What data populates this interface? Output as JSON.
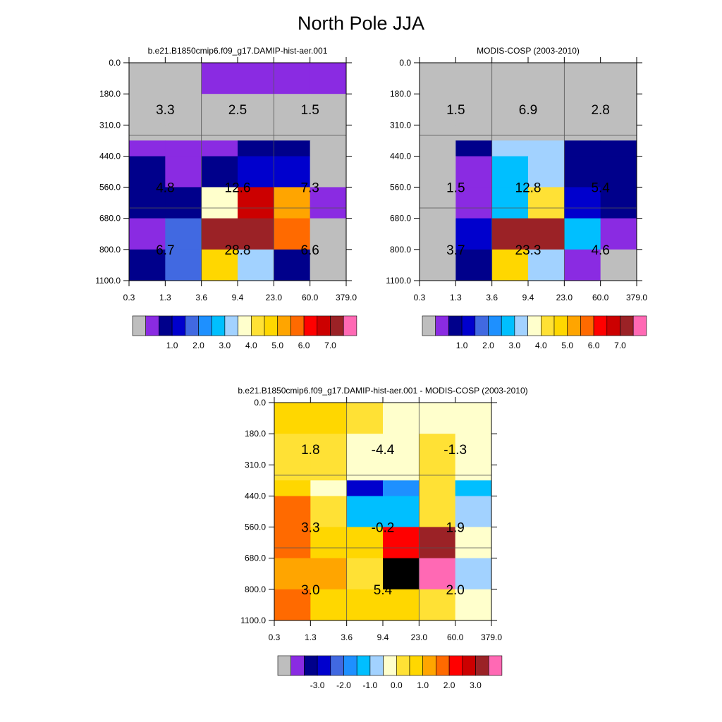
{
  "title": "North Pole JJA",
  "chart_data": [
    {
      "type": "heatmap",
      "title": "b.e21.B1850cmip6.f09_g17.DAMIP-hist-aer.001",
      "x_tick_labels": [
        "0.3",
        "1.3",
        "3.6",
        "9.4",
        "23.0",
        "60.0",
        "379.0"
      ],
      "y_tick_labels": [
        "0.0",
        "180.0",
        "310.0",
        "440.0",
        "560.0",
        "680.0",
        "800.0",
        "1100.0"
      ],
      "grid_values": [
        [
          0,
          0,
          1,
          1,
          1,
          1
        ],
        [
          0,
          0,
          0,
          0,
          0,
          0
        ],
        [
          0,
          0,
          0,
          0,
          0,
          0
        ],
        [
          1,
          1,
          1,
          2,
          2,
          0
        ],
        [
          2,
          1,
          2,
          3,
          3,
          0
        ],
        [
          2,
          2,
          8,
          14,
          11,
          1
        ],
        [
          1,
          4,
          15,
          15,
          12,
          0
        ],
        [
          2,
          4,
          10,
          7,
          2,
          0
        ]
      ],
      "annotations": [
        {
          "row": 1,
          "col": 0,
          "label": "3.3"
        },
        {
          "row": 1,
          "col": 1,
          "label": "2.5"
        },
        {
          "row": 1,
          "col": 2,
          "label": "1.5"
        },
        {
          "row": 2,
          "col": 0,
          "label": "4.8"
        },
        {
          "row": 2,
          "col": 1,
          "label": "12.6"
        },
        {
          "row": 2,
          "col": 2,
          "label": "7.3"
        },
        {
          "row": 3,
          "col": 0,
          "label": "6.7"
        },
        {
          "row": 3,
          "col": 1,
          "label": "28.8"
        },
        {
          "row": 3,
          "col": 2,
          "label": "6.6"
        }
      ],
      "colorbar": {
        "labels": [
          "1.0",
          "2.0",
          "3.0",
          "4.0",
          "5.0",
          "6.0",
          "7.0"
        ]
      }
    },
    {
      "type": "heatmap",
      "title": "MODIS-COSP (2003-2010)",
      "x_tick_labels": [
        "0.3",
        "1.3",
        "3.6",
        "9.4",
        "23.0",
        "60.0",
        "379.0"
      ],
      "y_tick_labels": [
        "0.0",
        "180.0",
        "310.0",
        "440.0",
        "560.0",
        "680.0",
        "800.0",
        "1100.0"
      ],
      "grid_values": [
        [
          0,
          0,
          0,
          0,
          0,
          0
        ],
        [
          0,
          0,
          0,
          0,
          0,
          0
        ],
        [
          0,
          0,
          0,
          0,
          0,
          0
        ],
        [
          0,
          2,
          7,
          7,
          2,
          2
        ],
        [
          0,
          1,
          6,
          7,
          2,
          2
        ],
        [
          0,
          1,
          6,
          9,
          3,
          2
        ],
        [
          0,
          3,
          15,
          15,
          6,
          1
        ],
        [
          0,
          2,
          10,
          7,
          1,
          0
        ]
      ],
      "annotations": [
        {
          "row": 1,
          "col": 0,
          "label": "1.5"
        },
        {
          "row": 1,
          "col": 1,
          "label": "6.9"
        },
        {
          "row": 1,
          "col": 2,
          "label": "2.8"
        },
        {
          "row": 2,
          "col": 0,
          "label": "1.5"
        },
        {
          "row": 2,
          "col": 1,
          "label": "12.8"
        },
        {
          "row": 2,
          "col": 2,
          "label": "5.4"
        },
        {
          "row": 3,
          "col": 0,
          "label": "3.7"
        },
        {
          "row": 3,
          "col": 1,
          "label": "23.3"
        },
        {
          "row": 3,
          "col": 2,
          "label": "4.6"
        }
      ],
      "colorbar": {
        "labels": [
          "1.0",
          "2.0",
          "3.0",
          "4.0",
          "5.0",
          "6.0",
          "7.0"
        ]
      }
    },
    {
      "type": "heatmap",
      "title": "b.e21.B1850cmip6.f09_g17.DAMIP-hist-aer.001 - MODIS-COSP (2003-2010)",
      "x_tick_labels": [
        "0.3",
        "1.3",
        "3.6",
        "9.4",
        "23.0",
        "60.0",
        "379.0"
      ],
      "y_tick_labels": [
        "0.0",
        "180.0",
        "310.0",
        "440.0",
        "560.0",
        "680.0",
        "800.0",
        "1100.0"
      ],
      "grid_values": [
        [
          10,
          10,
          9,
          8,
          8,
          8
        ],
        [
          9,
          9,
          8,
          8,
          9,
          8
        ],
        [
          9,
          9,
          8,
          8,
          9,
          8
        ],
        [
          10,
          8,
          3,
          5,
          9,
          6
        ],
        [
          12,
          9,
          6,
          6,
          9,
          7
        ],
        [
          12,
          10,
          10,
          13,
          15,
          8
        ],
        [
          11,
          11,
          9,
          18,
          16,
          7
        ],
        [
          12,
          10,
          10,
          10,
          9,
          8
        ]
      ],
      "annotations": [
        {
          "row": 1,
          "col": 0,
          "label": "1.8"
        },
        {
          "row": 1,
          "col": 1,
          "label": "-4.4"
        },
        {
          "row": 1,
          "col": 2,
          "label": "-1.3"
        },
        {
          "row": 2,
          "col": 0,
          "label": "3.3"
        },
        {
          "row": 2,
          "col": 1,
          "label": "-0.2"
        },
        {
          "row": 2,
          "col": 2,
          "label": "1.9"
        },
        {
          "row": 3,
          "col": 0,
          "label": "3.0"
        },
        {
          "row": 3,
          "col": 1,
          "label": "5.4"
        },
        {
          "row": 3,
          "col": 2,
          "label": "2.0"
        }
      ],
      "colorbar": {
        "labels": [
          "-3.0",
          "-2.0",
          "-1.0",
          "0.0",
          "1.0",
          "2.0",
          "3.0"
        ]
      }
    }
  ],
  "palette": [
    "#bebebe",
    "#8a2be2",
    "#00008b",
    "#0000cd",
    "#4169e1",
    "#1e90ff",
    "#00bfff",
    "#a2d2ff",
    "#ffffcc",
    "#ffe135",
    "#ffd700",
    "#ffa500",
    "#ff6a00",
    "#ff0000",
    "#cc0000",
    "#9b2226",
    "#ff69b4"
  ]
}
